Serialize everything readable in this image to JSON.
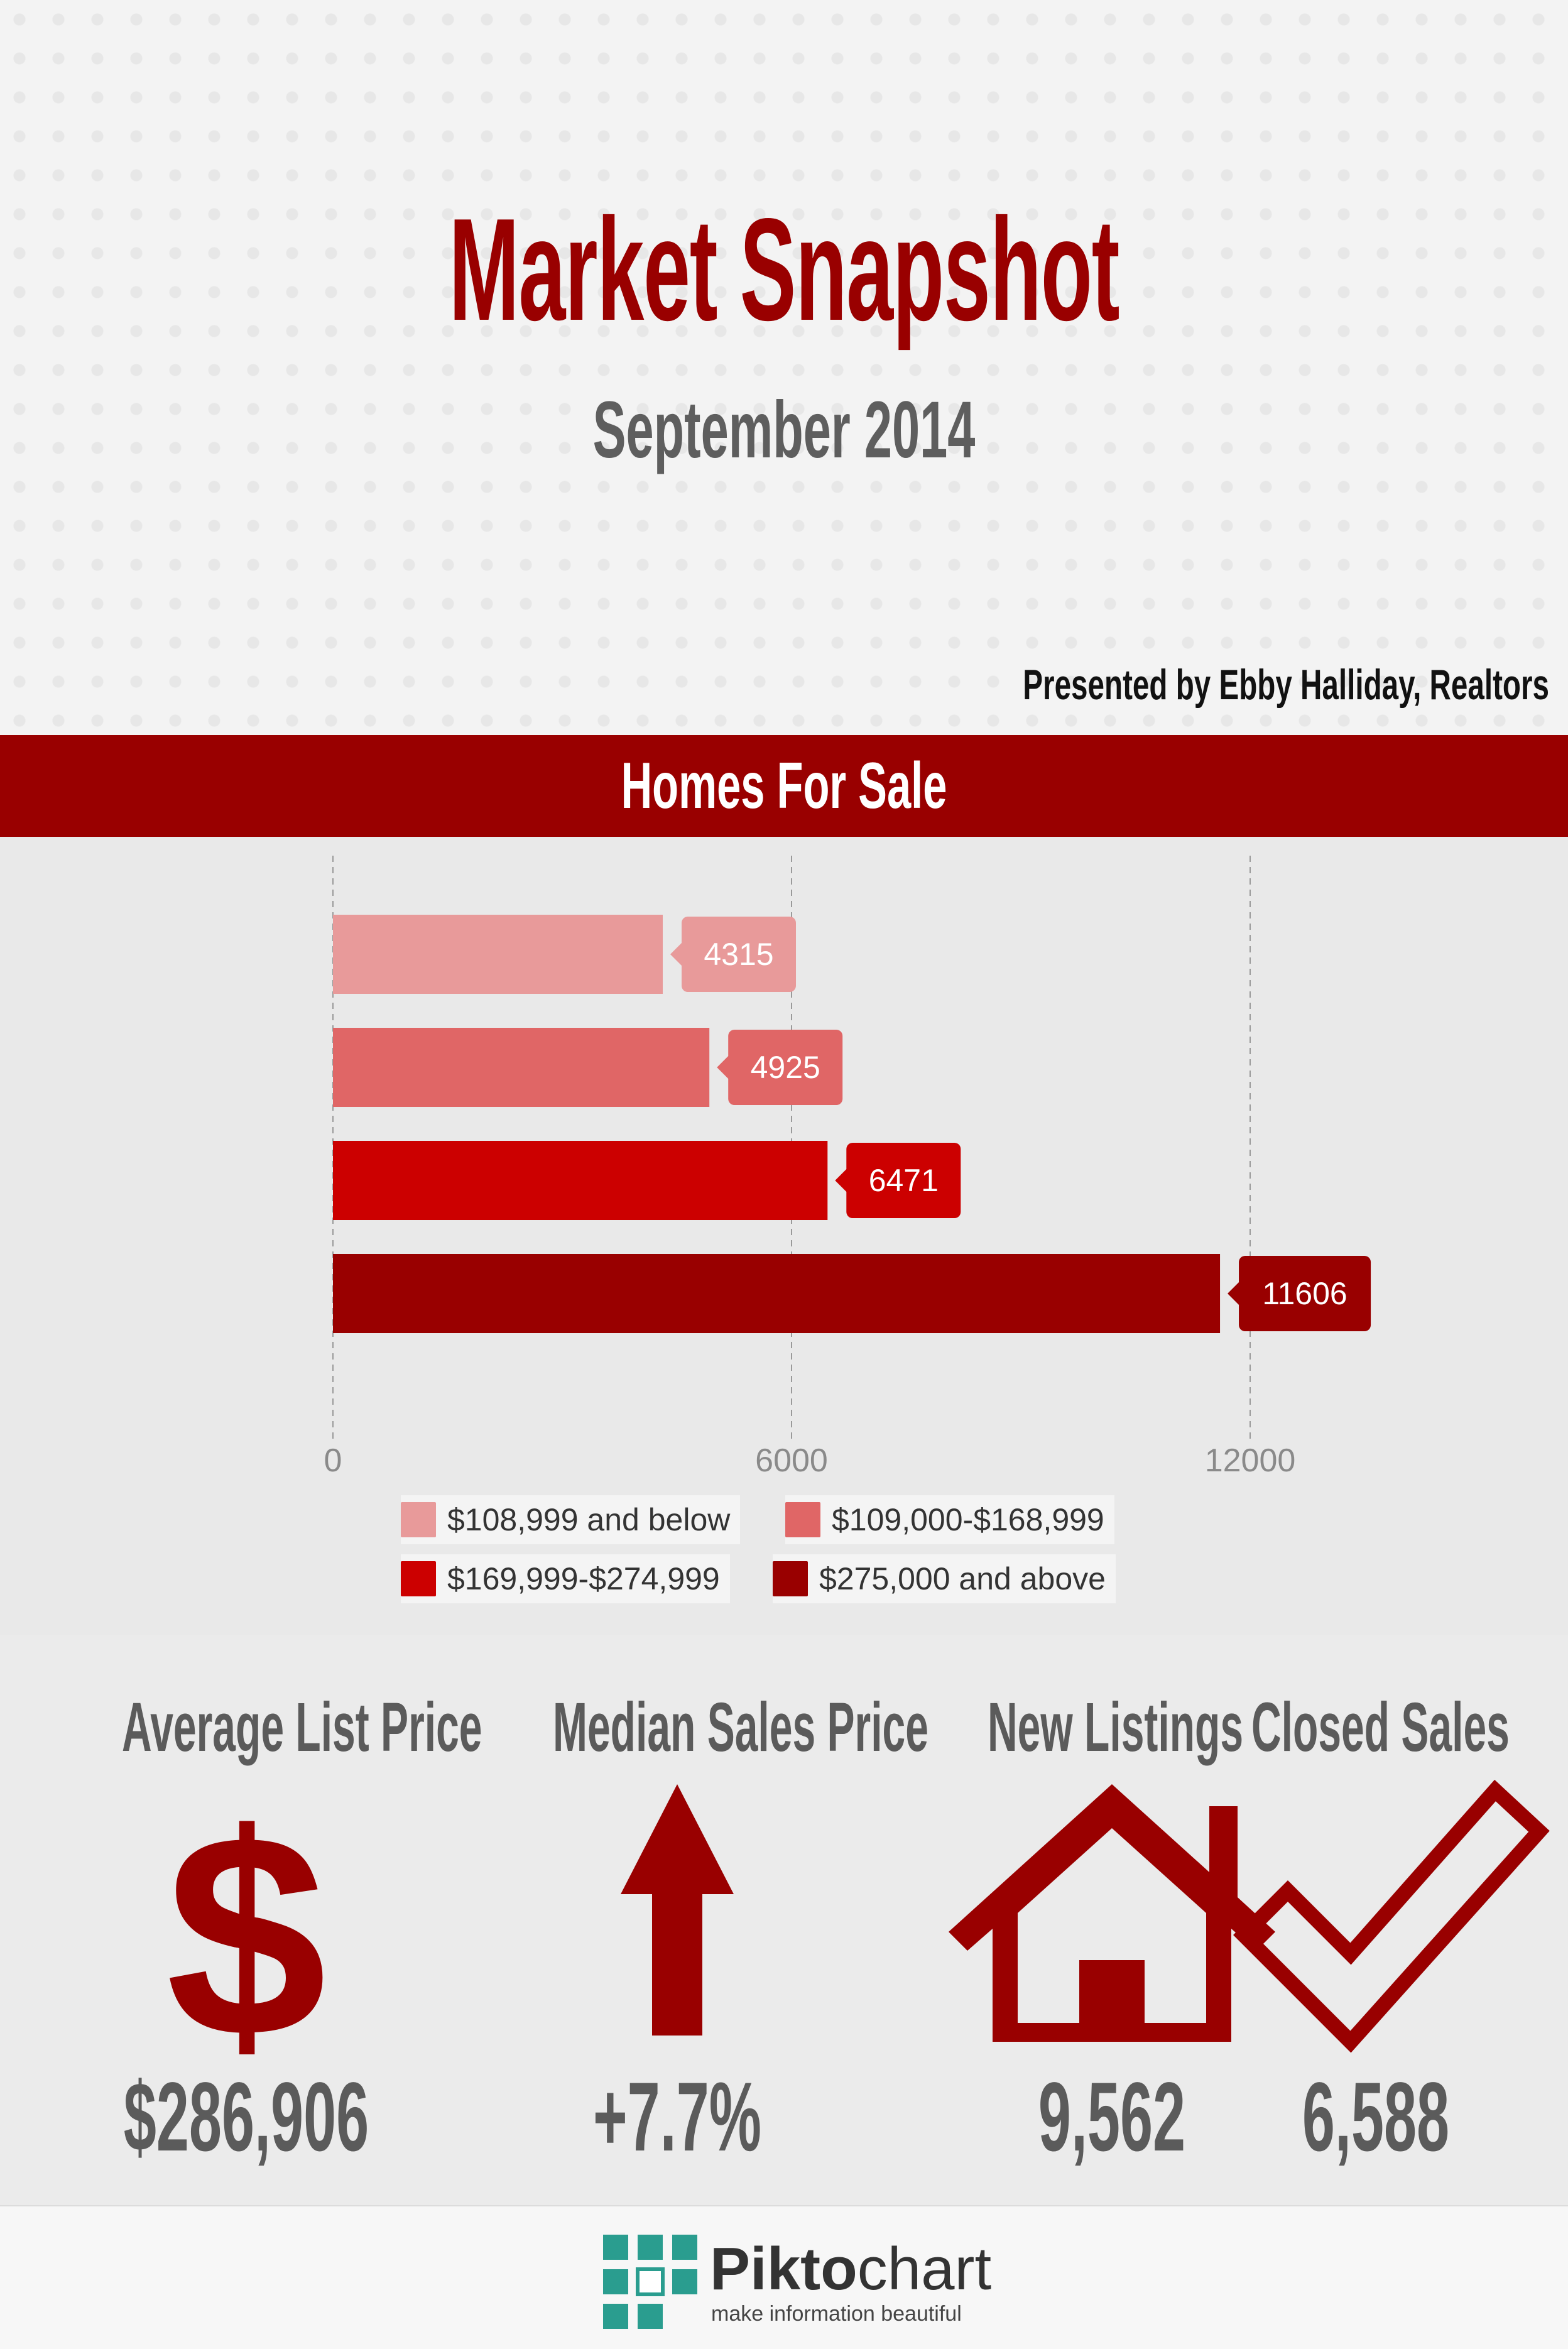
{
  "header": {
    "title": "Market Snapshot",
    "subtitle": "September 2014",
    "presented_by": "Presented by Ebby Halliday, Realtors"
  },
  "banner": {
    "title": "Homes For Sale"
  },
  "chart_data": {
    "type": "bar",
    "orientation": "horizontal",
    "title": "Homes For Sale",
    "categories": [
      "$108,999 and below",
      "$109,000-$168,999",
      "$169,999-$274,999",
      "$275,000 and above"
    ],
    "values": [
      4315,
      4925,
      6471,
      11606
    ],
    "colors": [
      "#e89a9a",
      "#e06666",
      "#cc0000",
      "#990000"
    ],
    "xticks": [
      0,
      6000,
      12000
    ],
    "xlim": [
      0,
      15000
    ],
    "grid": true,
    "legend": {
      "position": "bottom",
      "columns": 2
    }
  },
  "stats": [
    {
      "label": "Average List Price",
      "value": "$286,906",
      "icon": "dollar-icon"
    },
    {
      "label": "Median Sales Price",
      "value": "+7.7%",
      "icon": "up-arrow-icon"
    },
    {
      "label": "New Listings",
      "value": "9,562",
      "icon": "house-icon"
    },
    {
      "label": "Closed Sales",
      "value": "6,588",
      "icon": "checkmark-icon"
    }
  ],
  "theme": {
    "accent": "#990000",
    "stat_text": "#5b5b5b"
  },
  "footer": {
    "brand_prefix": "Pikto",
    "brand_suffix": "chart",
    "tagline": "make information beautiful"
  }
}
